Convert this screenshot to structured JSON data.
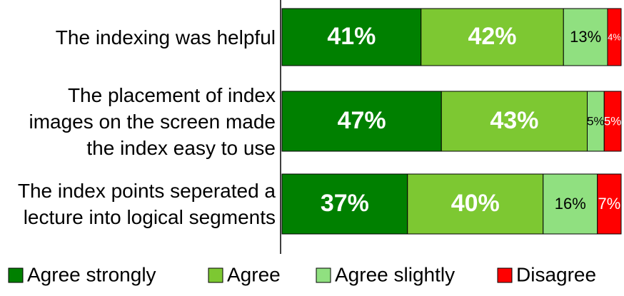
{
  "chart_data": {
    "type": "stacked_bar_horizontal",
    "categories": [
      "The indexing was helpful",
      "The placement of index images on the screen made the index easy to use",
      "The index points seperated a lecture into logical segments"
    ],
    "series": [
      {
        "name": "Agree strongly",
        "color": "#008000",
        "values": [
          41,
          47,
          37
        ],
        "value_labels": [
          "41%",
          "47%",
          "37%"
        ]
      },
      {
        "name": "Agree",
        "color": "#7dc832",
        "values": [
          42,
          43,
          40
        ],
        "value_labels": [
          "42%",
          "43%",
          "40%"
        ]
      },
      {
        "name": "Agree slightly",
        "color": "#90e080",
        "values": [
          13,
          5,
          16
        ],
        "value_labels": [
          "13%",
          "5%",
          "16%"
        ]
      },
      {
        "name": "Disagree",
        "color": "#ff0000",
        "values": [
          4,
          5,
          7
        ],
        "value_labels": [
          "4%",
          "5%",
          "7%"
        ]
      }
    ],
    "xlim": [
      0,
      100
    ],
    "legend": "bottom"
  }
}
